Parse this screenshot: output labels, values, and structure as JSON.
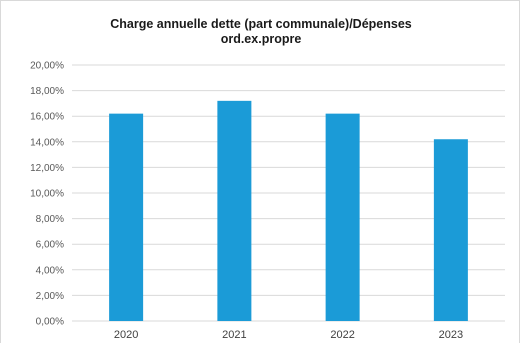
{
  "chart_data": {
    "type": "bar",
    "title_line1": "Charge annuelle dette (part communale)/Dépenses",
    "title_line2": "ord.ex.propre",
    "categories": [
      "2020",
      "2021",
      "2022",
      "2023"
    ],
    "values": [
      16.2,
      17.2,
      16.2,
      14.2
    ],
    "value_unit": "%",
    "ylim": [
      0,
      20
    ],
    "yticks": [
      "0,00%",
      "2,00%",
      "4,00%",
      "6,00%",
      "8,00%",
      "10,00%",
      "12,00%",
      "14,00%",
      "16,00%",
      "18,00%",
      "20,00%"
    ],
    "grid": true,
    "legend": "none",
    "bar_color": "#1b9bd7",
    "grid_color": "#d9d9d9"
  }
}
